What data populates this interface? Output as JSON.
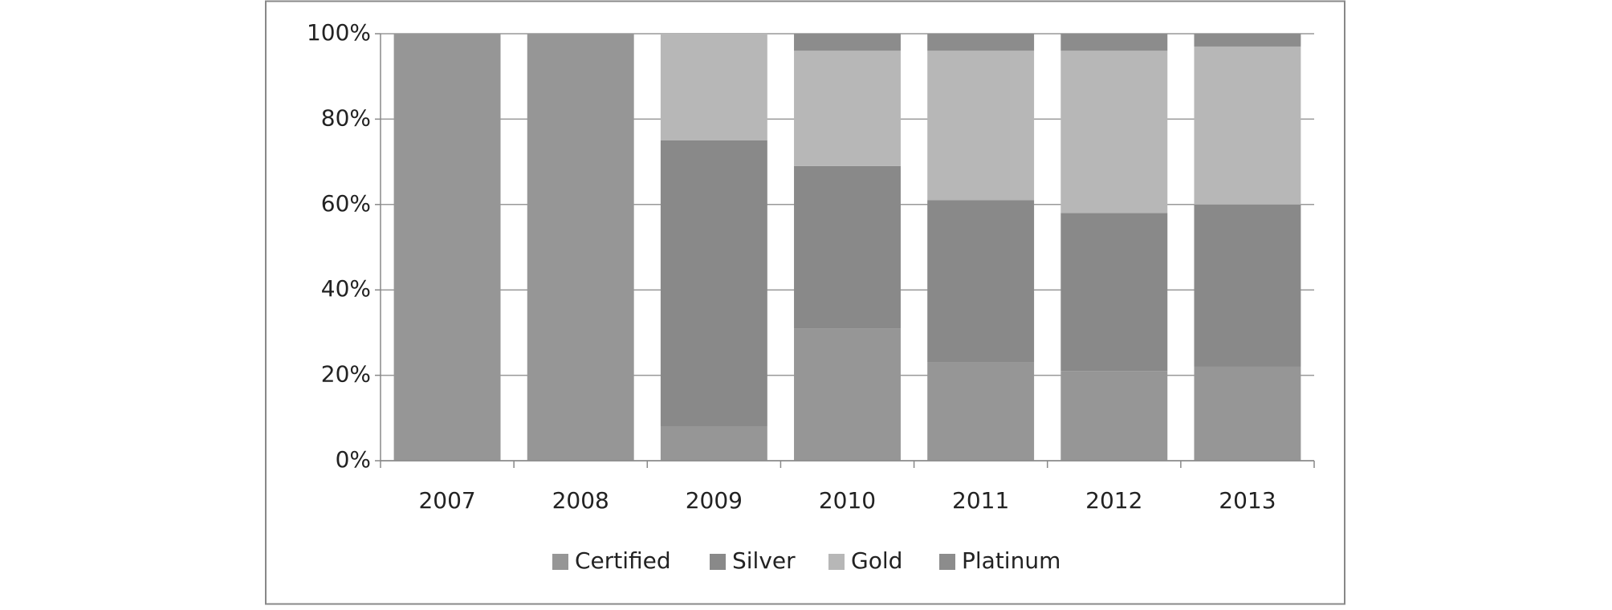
{
  "chart_data": {
    "type": "stacked_bar",
    "categories": [
      "2007",
      "2008",
      "2009",
      "2010",
      "2011",
      "2012",
      "2013"
    ],
    "series": [
      {
        "name": "Certified",
        "color": "#969696",
        "values": [
          100,
          100,
          8,
          31,
          23,
          21,
          22
        ]
      },
      {
        "name": "Silver",
        "color": "#898989",
        "values": [
          0,
          0,
          67,
          38,
          38,
          37,
          38
        ]
      },
      {
        "name": "Gold",
        "color": "#b7b7b7",
        "values": [
          0,
          0,
          25,
          27,
          35,
          38,
          37
        ]
      },
      {
        "name": "Platinum",
        "color": "#8c8c8c",
        "values": [
          0,
          0,
          0,
          4,
          4,
          4,
          3
        ]
      }
    ],
    "ylim": [
      0,
      100
    ],
    "yticks": [
      {
        "value": 0,
        "label": "0%"
      },
      {
        "value": 20,
        "label": "20%"
      },
      {
        "value": 40,
        "label": "40%"
      },
      {
        "value": 60,
        "label": "60%"
      },
      {
        "value": 80,
        "label": "80%"
      },
      {
        "value": 100,
        "label": "100%"
      }
    ],
    "grid": true,
    "legend": "bottom"
  }
}
